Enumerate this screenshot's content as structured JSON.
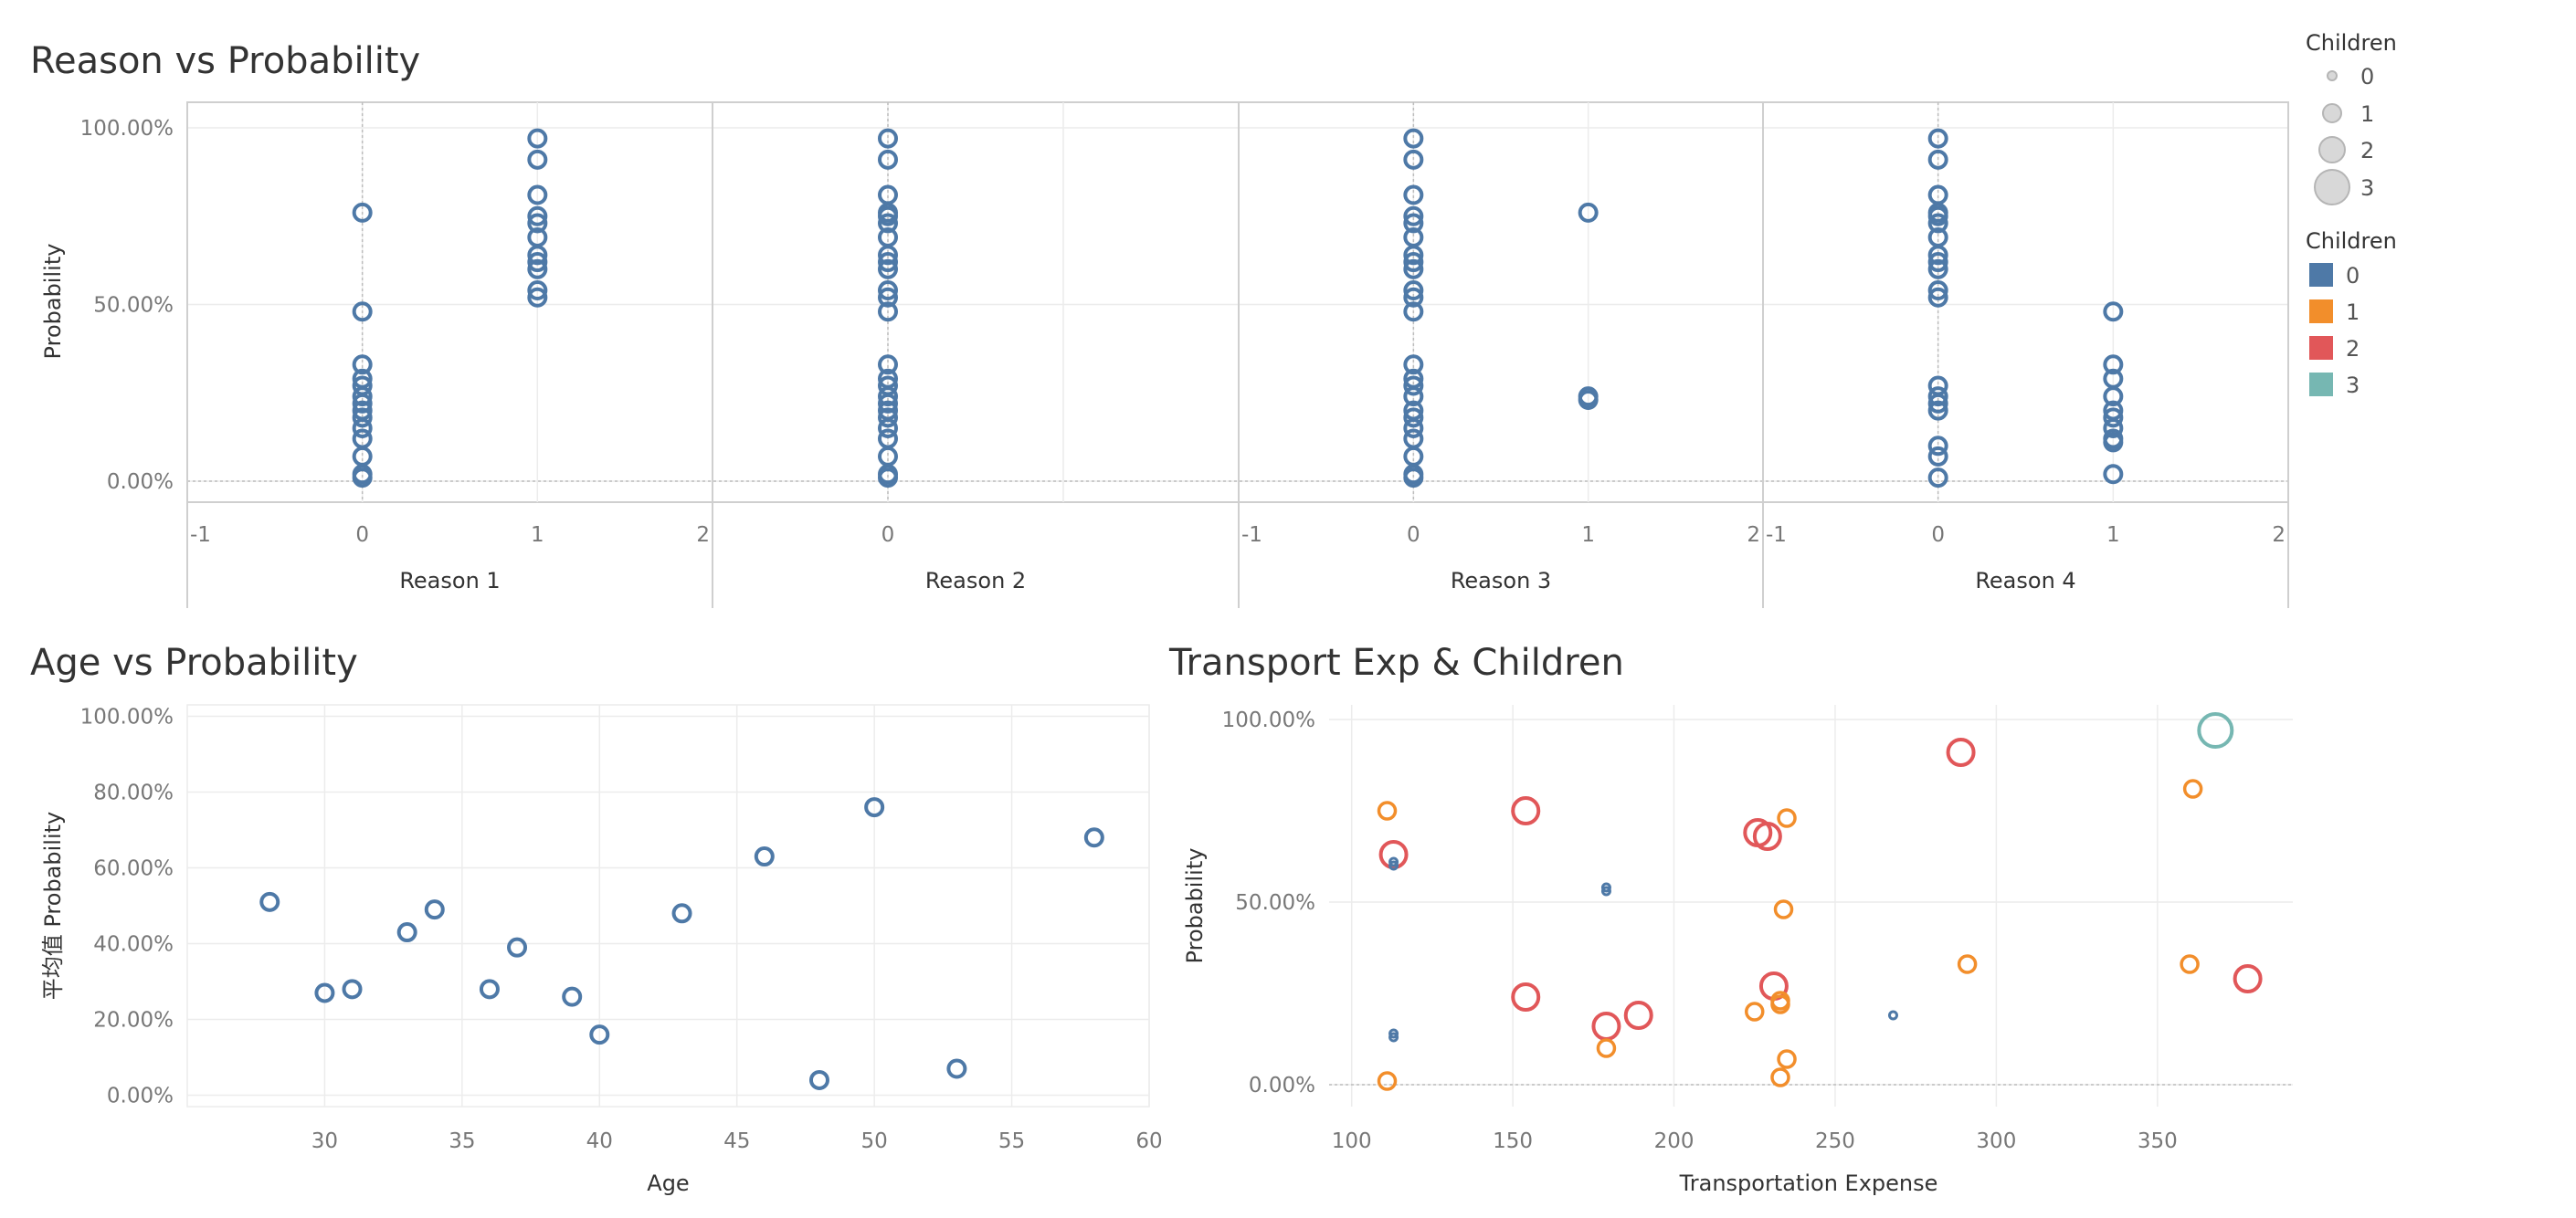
{
  "legend": {
    "size": {
      "title": "Children",
      "items": [
        "0",
        "1",
        "2",
        "3"
      ]
    },
    "color": {
      "title": "Children",
      "items": [
        {
          "label": "0",
          "color": "#4e79a7"
        },
        {
          "label": "1",
          "color": "#f28e2b"
        },
        {
          "label": "2",
          "color": "#e15759"
        },
        {
          "label": "3",
          "color": "#76b7b2"
        }
      ]
    }
  },
  "chart_data": [
    {
      "type": "scatter",
      "title": "Reason vs Probability",
      "ylabel": "Probability",
      "ylim": [
        0,
        100
      ],
      "yticks": [
        "100.00%",
        "50.00%",
        "0.00%"
      ],
      "color": "#4e79a7",
      "panels": [
        {
          "xlabel": "Reason 1",
          "xlim": [
            -1,
            2
          ],
          "xticks": [
            "-1",
            "0",
            "1",
            "2"
          ],
          "points": [
            {
              "x": 0,
              "y": [
                76,
                48,
                33,
                29,
                27,
                24,
                22,
                20,
                18,
                15,
                12,
                7,
                2,
                1
              ]
            },
            {
              "x": 1,
              "y": [
                97,
                91,
                81,
                75,
                73,
                69,
                64,
                62,
                60,
                54,
                52
              ]
            }
          ]
        },
        {
          "xlabel": "Reason 2",
          "xlim": [
            -1,
            2
          ],
          "xticks": [
            "0"
          ],
          "points": [
            {
              "x": 0,
              "y": [
                97,
                91,
                81,
                76,
                75,
                73,
                69,
                64,
                62,
                60,
                54,
                52,
                48,
                33,
                29,
                27,
                24,
                22,
                20,
                18,
                15,
                12,
                7,
                2,
                1
              ]
            }
          ]
        },
        {
          "xlabel": "Reason 3",
          "xlim": [
            -1,
            2
          ],
          "xticks": [
            "-1",
            "0",
            "1",
            "2"
          ],
          "points": [
            {
              "x": 0,
              "y": [
                97,
                91,
                81,
                75,
                73,
                69,
                64,
                62,
                60,
                54,
                52,
                48,
                33,
                29,
                27,
                24,
                20,
                18,
                15,
                12,
                7,
                2,
                1
              ]
            },
            {
              "x": 1,
              "y": [
                76,
                24,
                23
              ]
            }
          ]
        },
        {
          "xlabel": "Reason 4",
          "xlim": [
            -1,
            2
          ],
          "xticks": [
            "-1",
            "0",
            "1",
            "2"
          ],
          "points": [
            {
              "x": 0,
              "y": [
                97,
                91,
                81,
                76,
                75,
                73,
                69,
                64,
                62,
                60,
                54,
                52,
                27,
                24,
                22,
                20,
                10,
                7,
                1
              ]
            },
            {
              "x": 1,
              "y": [
                48,
                33,
                29,
                24,
                20,
                18,
                15,
                12,
                11,
                2
              ]
            }
          ]
        }
      ]
    },
    {
      "type": "scatter",
      "title": "Age vs Probability",
      "xlabel": "Age",
      "ylabel": "平均值 Probability",
      "xlim": [
        25,
        60
      ],
      "ylim": [
        -3,
        103
      ],
      "xticks": [
        30,
        35,
        40,
        45,
        50,
        55,
        60
      ],
      "yticks": [
        0,
        20,
        40,
        60,
        80,
        100
      ],
      "ytick_labels": [
        "0.00%",
        "20.00%",
        "40.00%",
        "60.00%",
        "80.00%",
        "100.00%"
      ],
      "color": "#4e79a7",
      "points": [
        {
          "x": 28,
          "y": 51
        },
        {
          "x": 30,
          "y": 27
        },
        {
          "x": 31,
          "y": 28
        },
        {
          "x": 33,
          "y": 43
        },
        {
          "x": 34,
          "y": 49
        },
        {
          "x": 36,
          "y": 28
        },
        {
          "x": 37,
          "y": 39
        },
        {
          "x": 39,
          "y": 26
        },
        {
          "x": 40,
          "y": 16
        },
        {
          "x": 43,
          "y": 48
        },
        {
          "x": 46,
          "y": 63
        },
        {
          "x": 48,
          "y": 4
        },
        {
          "x": 50,
          "y": 76
        },
        {
          "x": 53,
          "y": 7
        },
        {
          "x": 58,
          "y": 68
        }
      ]
    },
    {
      "type": "scatter",
      "title": "Transport Exp & Children",
      "xlabel": "Transportation Expense",
      "ylabel": "Probability",
      "xlim": [
        93,
        392
      ],
      "ylim": [
        -6,
        104
      ],
      "xticks": [
        100,
        150,
        200,
        250,
        300,
        350
      ],
      "yticks": [
        0,
        50,
        100
      ],
      "ytick_labels": [
        "0.00%",
        "50.00%",
        "100.00%"
      ],
      "points": [
        {
          "x": 368,
          "y": 97,
          "children": 3
        },
        {
          "x": 289,
          "y": 91,
          "children": 2
        },
        {
          "x": 154,
          "y": 75,
          "children": 2
        },
        {
          "x": 113,
          "y": 63,
          "children": 2
        },
        {
          "x": 226,
          "y": 69,
          "children": 2
        },
        {
          "x": 229,
          "y": 68,
          "children": 2
        },
        {
          "x": 231,
          "y": 27,
          "children": 2
        },
        {
          "x": 154,
          "y": 24,
          "children": 2
        },
        {
          "x": 189,
          "y": 19,
          "children": 2
        },
        {
          "x": 179,
          "y": 16,
          "children": 2
        },
        {
          "x": 378,
          "y": 29,
          "children": 2
        },
        {
          "x": 111,
          "y": 75,
          "children": 1
        },
        {
          "x": 235,
          "y": 73,
          "children": 1
        },
        {
          "x": 234,
          "y": 48,
          "children": 1
        },
        {
          "x": 361,
          "y": 81,
          "children": 1
        },
        {
          "x": 291,
          "y": 33,
          "children": 1
        },
        {
          "x": 360,
          "y": 33,
          "children": 1
        },
        {
          "x": 225,
          "y": 20,
          "children": 1
        },
        {
          "x": 233,
          "y": 23,
          "children": 1
        },
        {
          "x": 233,
          "y": 22,
          "children": 1
        },
        {
          "x": 179,
          "y": 10,
          "children": 1
        },
        {
          "x": 235,
          "y": 7,
          "children": 1
        },
        {
          "x": 233,
          "y": 2,
          "children": 1
        },
        {
          "x": 111,
          "y": 1,
          "children": 1
        },
        {
          "x": 113,
          "y": 61,
          "children": 0
        },
        {
          "x": 113,
          "y": 60,
          "children": 0
        },
        {
          "x": 179,
          "y": 54,
          "children": 0
        },
        {
          "x": 179,
          "y": 53,
          "children": 0
        },
        {
          "x": 113,
          "y": 14,
          "children": 0
        },
        {
          "x": 113,
          "y": 13,
          "children": 0
        },
        {
          "x": 268,
          "y": 19,
          "children": 0
        }
      ]
    }
  ]
}
